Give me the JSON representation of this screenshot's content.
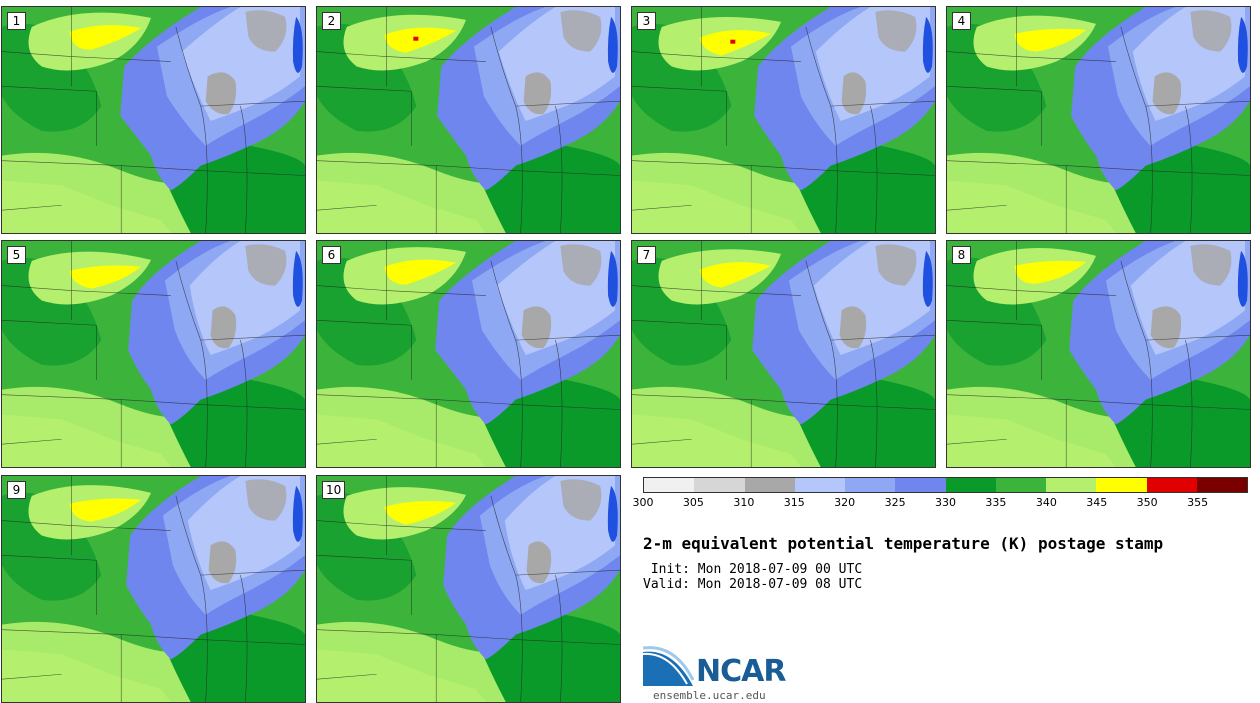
{
  "members": [
    {
      "label": "1",
      "variant": 0
    },
    {
      "label": "2",
      "variant": 1
    },
    {
      "label": "3",
      "variant": 2
    },
    {
      "label": "4",
      "variant": 3
    },
    {
      "label": "5",
      "variant": 4
    },
    {
      "label": "6",
      "variant": 5
    },
    {
      "label": "7",
      "variant": 6
    },
    {
      "label": "8",
      "variant": 7
    },
    {
      "label": "9",
      "variant": 8
    },
    {
      "label": "10",
      "variant": 9
    }
  ],
  "colorbar": {
    "colors": [
      "#f0f0f0",
      "#d6d6d6",
      "#a8a8a8",
      "#b4c6fa",
      "#8ea8f4",
      "#6f86ee",
      "#0a9a2a",
      "#3cb43c",
      "#b4f06e",
      "#ffff00",
      "#e00000",
      "#7a0000"
    ],
    "ticks": [
      "300",
      "305",
      "310",
      "315",
      "320",
      "325",
      "330",
      "335",
      "340",
      "345",
      "350",
      "355"
    ]
  },
  "title": "2-m equivalent potential temperature (K) postage stamp",
  "init": " Init: Mon 2018-07-09 00 UTC",
  "valid": "Valid: Mon 2018-07-09 08 UTC",
  "logo": {
    "text": "NCAR",
    "url": "ensemble.ucar.edu"
  },
  "map_colors": {
    "grey": "#a8a8a8",
    "pale_blue": "#b4c6fa",
    "mid_blue": "#8ea8f4",
    "deep_blue": "#6f86ee",
    "dark_green": "#0a9a2a",
    "green": "#3cb43c",
    "light_green": "#b4f06e",
    "yellow": "#ffff00",
    "red": "#e00000",
    "lake": "#2050e0"
  }
}
